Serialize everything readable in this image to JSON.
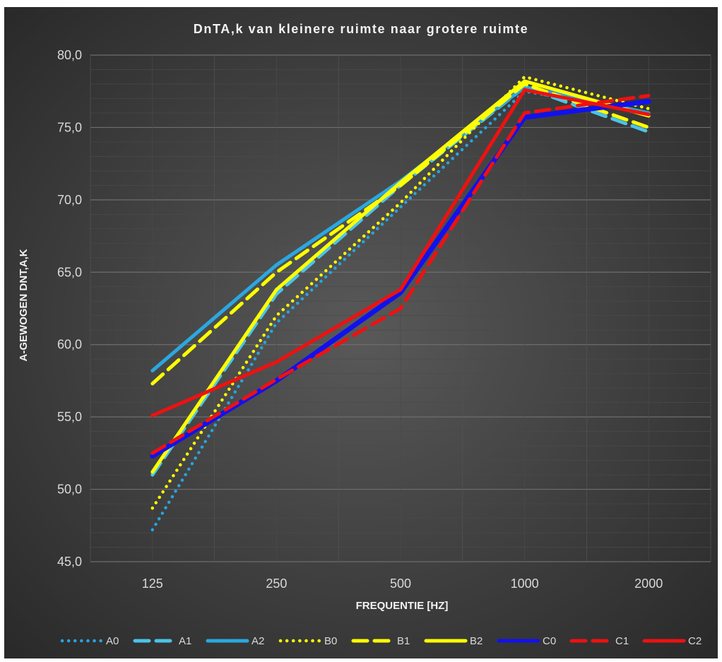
{
  "chart_data": {
    "type": "line",
    "title": "DnTA,k van kleinere ruimte naar grotere ruimte",
    "xlabel": "FREQUENTIE [HZ]",
    "ylabel": "A-GEWOGEN DNT,A,K",
    "categories": [
      "125",
      "250",
      "500",
      "1000",
      "2000"
    ],
    "ylim": [
      45,
      80
    ],
    "yticks": [
      "45,0",
      "50,0",
      "55,0",
      "60,0",
      "65,0",
      "70,0",
      "75,0",
      "80,0"
    ],
    "grid": true,
    "legend": "bottom",
    "series": [
      {
        "name": "A0",
        "values": [
          47.2,
          61.5,
          69.5,
          77.5,
          76.0
        ],
        "color": "#29A3DD",
        "dash": "dot"
      },
      {
        "name": "A1",
        "values": [
          51.0,
          63.5,
          71.0,
          77.8,
          74.7
        ],
        "color": "#4CC3EA",
        "dash": "dash"
      },
      {
        "name": "A2",
        "values": [
          58.2,
          65.5,
          71.3,
          77.8,
          76.0
        ],
        "color": "#2AA8E0",
        "dash": "solid"
      },
      {
        "name": "B0",
        "values": [
          48.7,
          62.0,
          69.8,
          78.5,
          76.3
        ],
        "color": "#FFFF00",
        "dash": "dot"
      },
      {
        "name": "B1",
        "values": [
          57.3,
          65.0,
          71.0,
          78.0,
          75.0
        ],
        "color": "#FFFF00",
        "dash": "dash"
      },
      {
        "name": "B2",
        "values": [
          51.2,
          63.8,
          71.2,
          78.2,
          75.8
        ],
        "color": "#FFFF00",
        "dash": "solid"
      },
      {
        "name": "C0",
        "values": [
          52.3,
          57.5,
          63.6,
          75.7,
          76.8
        ],
        "color": "#1111EE",
        "dash": "solid"
      },
      {
        "name": "C1",
        "values": [
          52.5,
          57.6,
          62.5,
          76.0,
          77.2
        ],
        "color": "#EE1111",
        "dash": "dash"
      },
      {
        "name": "C2",
        "values": [
          55.1,
          58.8,
          63.8,
          77.6,
          75.9
        ],
        "color": "#EE1111",
        "dash": "solid"
      }
    ]
  }
}
